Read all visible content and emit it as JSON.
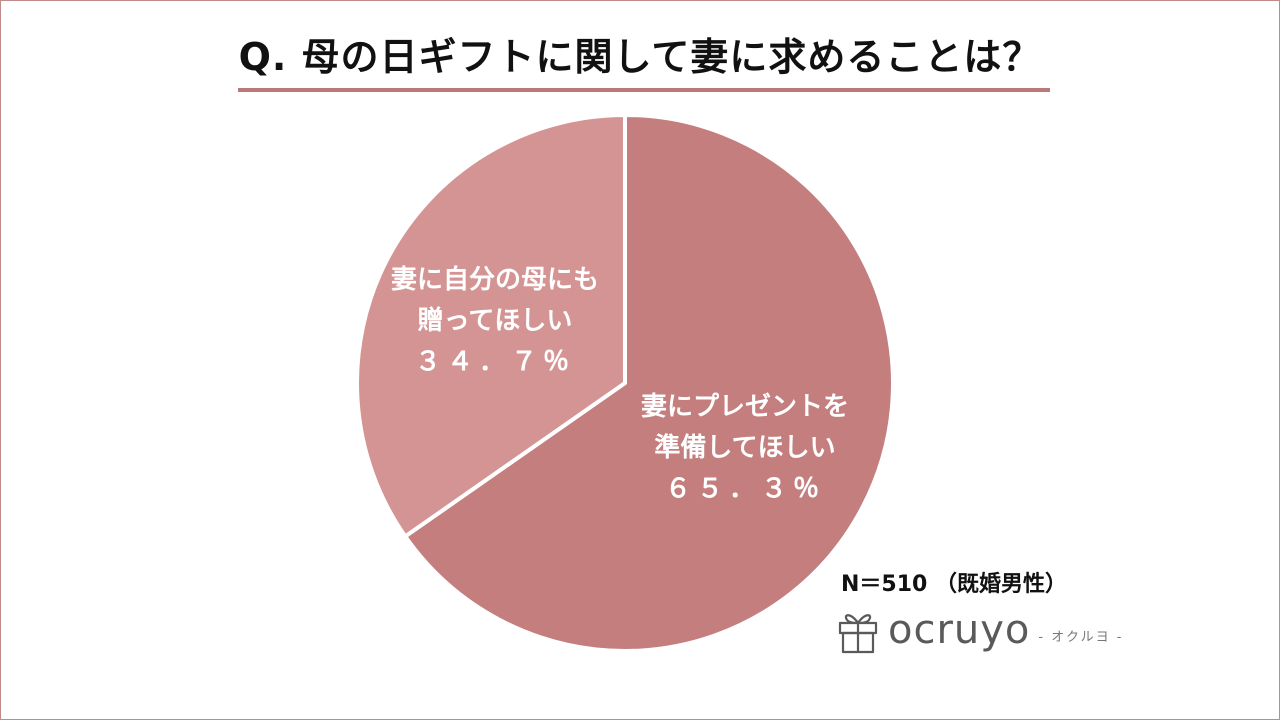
{
  "title": "Q. 母の日ギフトに関して妻に求めることは？",
  "sample_note": "N＝510 （既婚男性）",
  "logo": {
    "name": "ocruyo",
    "sub": "- オクルヨ -",
    "icon": "gift-box-icon"
  },
  "colors": {
    "slice_major": "#c57e7e",
    "slice_minor": "#d49494",
    "title_rule": "#b97a7a",
    "frame": "#c08a8a"
  },
  "chart_data": {
    "type": "pie",
    "title": "Q. 母の日ギフトに関して妻に求めることは？",
    "slices": [
      {
        "label_lines": [
          "妻にプレゼントを",
          "準備してほしい"
        ],
        "value": 65.3,
        "value_text": "６５．３％"
      },
      {
        "label_lines": [
          "妻に自分の母にも",
          "贈ってほしい"
        ],
        "value": 34.7,
        "value_text": "３４．７％"
      }
    ],
    "start": "12 o'clock, clockwise",
    "legend": "none (labels inside slices)"
  }
}
